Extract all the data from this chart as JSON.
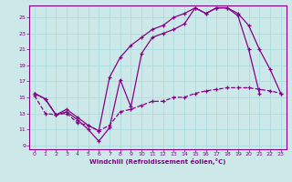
{
  "bg_color": "#cce8e8",
  "grid_color": "#aadddd",
  "line_color": "#880088",
  "xlabel": "Windchill (Refroidissement éolien,°C)",
  "xlim": [
    -0.5,
    23.5
  ],
  "ylim": [
    8.5,
    26.5
  ],
  "yticks": [
    9,
    11,
    13,
    15,
    17,
    19,
    21,
    23,
    25
  ],
  "xticks": [
    0,
    1,
    2,
    3,
    4,
    5,
    6,
    7,
    8,
    9,
    10,
    11,
    12,
    13,
    14,
    15,
    16,
    17,
    18,
    19,
    20,
    21,
    22,
    23
  ],
  "line1_x": [
    0,
    1,
    2,
    3,
    4,
    5,
    6,
    7,
    8,
    9,
    10,
    11,
    12,
    13,
    14,
    15,
    16,
    17,
    18,
    19,
    20,
    21
  ],
  "line1_y": [
    15.5,
    14.8,
    12.8,
    13.2,
    12.2,
    11.0,
    9.5,
    11.2,
    17.2,
    13.8,
    20.5,
    22.5,
    23.0,
    23.5,
    24.2,
    26.2,
    25.5,
    26.2,
    26.2,
    25.2,
    21.0,
    15.5
  ],
  "line2_x": [
    0,
    1,
    2,
    3,
    4,
    5,
    6,
    7,
    8,
    9,
    10,
    11,
    12,
    13,
    14,
    15,
    16,
    17,
    18,
    19,
    20,
    21,
    22,
    23
  ],
  "line2_y": [
    15.5,
    14.8,
    12.8,
    13.5,
    12.5,
    11.5,
    10.8,
    17.5,
    20.0,
    21.5,
    22.5,
    23.5,
    24.0,
    25.0,
    25.5,
    26.2,
    25.5,
    26.2,
    26.2,
    25.5,
    24.0,
    21.0,
    18.5,
    15.5
  ],
  "line3_x": [
    0,
    1,
    2,
    3,
    4,
    5,
    6,
    7,
    8,
    9,
    10,
    11,
    12,
    13,
    14,
    15,
    16,
    17,
    18,
    19,
    20,
    21,
    22,
    23
  ],
  "line3_y": [
    15.2,
    13.0,
    12.8,
    13.0,
    11.8,
    11.5,
    10.8,
    11.5,
    13.2,
    13.5,
    14.0,
    14.5,
    14.5,
    15.0,
    15.0,
    15.5,
    15.8,
    16.0,
    16.2,
    16.2,
    16.2,
    16.0,
    15.8,
    15.5
  ]
}
